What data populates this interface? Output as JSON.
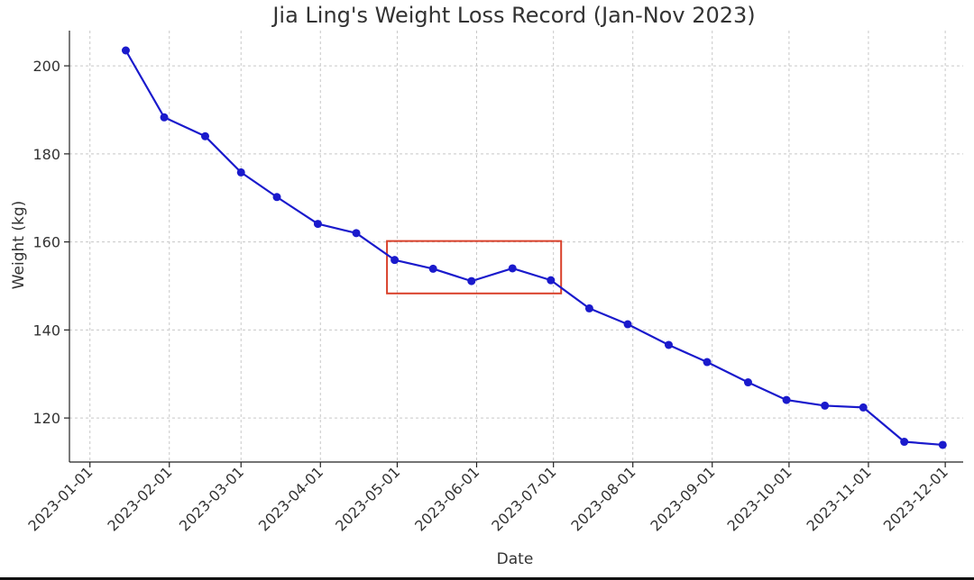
{
  "chart_data": {
    "type": "line",
    "title": "Jia Ling's Weight Loss Record (Jan-Nov 2023)",
    "xlabel": "Date",
    "ylabel": "Weight (kg)",
    "x_range": [
      "2022-12-24",
      "2023-12-08"
    ],
    "ylim": [
      110,
      208
    ],
    "yticks": [
      120,
      140,
      160,
      180,
      200
    ],
    "xticks": [
      "2023-01-01",
      "2023-02-01",
      "2023-03-01",
      "2023-04-01",
      "2023-05-01",
      "2023-06-01",
      "2023-07-01",
      "2023-08-01",
      "2023-09-01",
      "2023-10-01",
      "2023-11-01",
      "2023-12-01"
    ],
    "grid": true,
    "line_color": "#1a1acc",
    "highlight_color": "#d9402a",
    "highlight_range": {
      "x": [
        "2023-04-27",
        "2023-07-04"
      ],
      "y": [
        148.3,
        160.2
      ]
    },
    "series": [
      {
        "name": "Weight",
        "x": [
          "2023-01-15",
          "2023-01-30",
          "2023-02-15",
          "2023-03-01",
          "2023-03-15",
          "2023-03-31",
          "2023-04-15",
          "2023-04-30",
          "2023-05-15",
          "2023-05-30",
          "2023-06-15",
          "2023-06-30",
          "2023-07-15",
          "2023-07-30",
          "2023-08-15",
          "2023-08-30",
          "2023-09-15",
          "2023-09-30",
          "2023-10-15",
          "2023-10-30",
          "2023-11-15",
          "2023-11-30"
        ],
        "values": [
          203.5,
          188.3,
          184.0,
          175.8,
          170.2,
          164.1,
          162.0,
          155.9,
          153.9,
          151.1,
          154.0,
          151.3,
          144.9,
          141.3,
          136.6,
          132.7,
          128.1,
          124.1,
          122.8,
          122.4,
          114.6,
          113.9
        ]
      }
    ]
  }
}
